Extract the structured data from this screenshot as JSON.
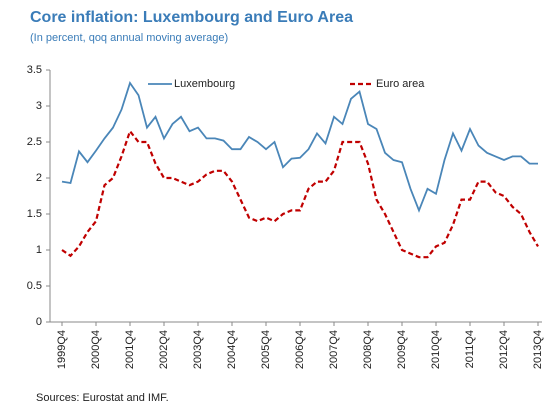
{
  "chart_data": {
    "type": "line",
    "title": "Core inflation: Luxembourg and Euro Area",
    "subtitle": "(In percent, qoq annual moving average)",
    "note": "Sources: Eurostat and IMF.",
    "categories": [
      "1999Q4",
      null,
      null,
      null,
      "2000Q4",
      null,
      null,
      null,
      "2001Q4",
      null,
      null,
      null,
      "2002Q4",
      null,
      null,
      null,
      "2003Q4",
      null,
      null,
      null,
      "2004Q4",
      null,
      null,
      null,
      "2005Q4",
      null,
      null,
      null,
      "2006Q4",
      null,
      null,
      null,
      "2007Q4",
      null,
      null,
      null,
      "2008Q4",
      null,
      null,
      null,
      "2009Q4",
      null,
      null,
      null,
      "2010Q4",
      null,
      null,
      null,
      "2011Q4",
      null,
      null,
      null,
      "2012Q4",
      null,
      null,
      null,
      "2013Q4"
    ],
    "series": [
      {
        "name": "Luxembourg",
        "color": "#4a86b8",
        "dashed": false,
        "values": [
          1.95,
          1.93,
          2.37,
          2.22,
          2.38,
          2.55,
          2.7,
          2.95,
          3.32,
          3.15,
          2.7,
          2.85,
          2.55,
          2.75,
          2.85,
          2.65,
          2.7,
          2.55,
          2.55,
          2.52,
          2.4,
          2.4,
          2.57,
          2.5,
          2.4,
          2.5,
          2.15,
          2.27,
          2.28,
          2.4,
          2.62,
          2.48,
          2.85,
          2.75,
          3.1,
          3.2,
          2.75,
          2.68,
          2.35,
          2.25,
          2.22,
          1.85,
          1.55,
          1.85,
          1.78,
          2.25,
          2.62,
          2.38,
          2.68,
          2.45,
          2.35,
          2.3,
          2.25,
          2.3,
          2.3,
          2.2,
          2.2
        ]
      },
      {
        "name": "Euro area",
        "color": "#c00000",
        "dashed": true,
        "values": [
          1.0,
          0.92,
          1.05,
          1.25,
          1.4,
          1.9,
          2.0,
          2.3,
          2.65,
          2.5,
          2.5,
          2.2,
          2.0,
          2.0,
          1.95,
          1.9,
          1.95,
          2.05,
          2.1,
          2.1,
          1.95,
          1.7,
          1.45,
          1.4,
          1.45,
          1.4,
          1.5,
          1.55,
          1.55,
          1.85,
          1.95,
          1.95,
          2.1,
          2.5,
          2.5,
          2.5,
          2.2,
          1.7,
          1.5,
          1.25,
          1.0,
          0.95,
          0.9,
          0.9,
          1.05,
          1.1,
          1.35,
          1.7,
          1.7,
          1.95,
          1.95,
          1.8,
          1.75,
          1.6,
          1.5,
          1.25,
          1.05
        ]
      }
    ],
    "ylim": [
      0,
      3.5
    ],
    "yticks": [
      0,
      0.5,
      1,
      1.5,
      2,
      2.5,
      3,
      3.5
    ],
    "grid": false
  }
}
